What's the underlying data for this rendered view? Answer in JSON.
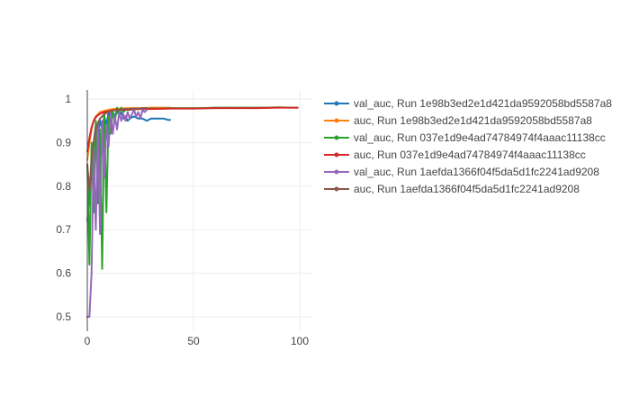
{
  "chart_data": {
    "type": "line",
    "title": "",
    "xlabel": "",
    "ylabel": "",
    "xlim": [
      -2,
      105
    ],
    "ylim": [
      0.47,
      1.02
    ],
    "x_ticks": [
      0,
      50,
      100
    ],
    "y_ticks": [
      0.5,
      0.6,
      0.7,
      0.8,
      0.9,
      1
    ],
    "x_tick_labels": [
      "0",
      "50",
      "100"
    ],
    "y_tick_labels": [
      "0.5",
      "0.6",
      "0.7",
      "0.8",
      "0.9",
      "1"
    ],
    "grid": true,
    "legend_position": "right",
    "series": [
      {
        "name": "val_auc, Run 1e98b3ed2e1d421da9592058bd5587a8",
        "color": "#1f77b4",
        "x": [
          0,
          1,
          2,
          3,
          4,
          5,
          6,
          7,
          8,
          9,
          10,
          11,
          12,
          13,
          14,
          15,
          16,
          17,
          18,
          19,
          20,
          22,
          24,
          26,
          28,
          30,
          32,
          34,
          36,
          38,
          39
        ],
        "y": [
          0.72,
          0.78,
          0.84,
          0.9,
          0.94,
          0.92,
          0.95,
          0.93,
          0.96,
          0.94,
          0.97,
          0.95,
          0.97,
          0.96,
          0.975,
          0.96,
          0.97,
          0.955,
          0.96,
          0.95,
          0.955,
          0.96,
          0.955,
          0.955,
          0.95,
          0.955,
          0.955,
          0.955,
          0.955,
          0.952,
          0.952
        ]
      },
      {
        "name": "auc, Run 1e98b3ed2e1d421da9592058bd5587a8",
        "color": "#ff7f0e",
        "x": [
          0,
          1,
          2,
          3,
          4,
          5,
          6,
          8,
          10,
          12,
          15,
          20,
          25,
          30,
          35,
          39
        ],
        "y": [
          0.86,
          0.9,
          0.93,
          0.95,
          0.96,
          0.965,
          0.97,
          0.973,
          0.975,
          0.977,
          0.978,
          0.979,
          0.979,
          0.98,
          0.98,
          0.98
        ]
      },
      {
        "name": "val_auc, Run 037e1d9e4ad74784974f4aaac11138cc",
        "color": "#2ca02c",
        "x": [
          0,
          1,
          2,
          3,
          4,
          5,
          6,
          7,
          8,
          9,
          10,
          11,
          12,
          13,
          14,
          15,
          16,
          17,
          18,
          20,
          25,
          30,
          35,
          40,
          45,
          50,
          55,
          60,
          65,
          70,
          75,
          80,
          85,
          90,
          95,
          99
        ],
        "y": [
          0.85,
          0.62,
          0.9,
          0.74,
          0.95,
          0.76,
          0.93,
          0.61,
          0.97,
          0.74,
          0.96,
          0.92,
          0.97,
          0.95,
          0.98,
          0.97,
          0.98,
          0.97,
          0.975,
          0.975,
          0.978,
          0.978,
          0.978,
          0.979,
          0.979,
          0.979,
          0.979,
          0.98,
          0.98,
          0.98,
          0.98,
          0.98,
          0.98,
          0.981,
          0.98,
          0.98
        ]
      },
      {
        "name": "auc, Run 037e1d9e4ad74784974f4aaac11138cc",
        "color": "#d62728",
        "x": [
          0,
          1,
          2,
          3,
          4,
          5,
          6,
          7,
          8,
          10,
          12,
          15,
          20,
          25,
          30,
          40,
          50,
          60,
          70,
          80,
          90,
          99
        ],
        "y": [
          0.88,
          0.91,
          0.935,
          0.95,
          0.958,
          0.963,
          0.966,
          0.968,
          0.97,
          0.972,
          0.974,
          0.975,
          0.976,
          0.977,
          0.977,
          0.978,
          0.978,
          0.979,
          0.979,
          0.979,
          0.98,
          0.98
        ]
      },
      {
        "name": "val_auc, Run 1aefda1366f04f5da5d1fc2241ad9208",
        "color": "#9467bd",
        "x": [
          0,
          1,
          2,
          3,
          4,
          5,
          6,
          7,
          8,
          9,
          10,
          11,
          12,
          13,
          14,
          15,
          16,
          17,
          18,
          19,
          20,
          21,
          22,
          23,
          24,
          25,
          26,
          27,
          28
        ],
        "y": [
          0.5,
          0.5,
          0.6,
          0.88,
          0.7,
          0.94,
          0.69,
          0.95,
          0.82,
          0.94,
          0.89,
          0.97,
          0.92,
          0.96,
          0.93,
          0.97,
          0.95,
          0.965,
          0.95,
          0.97,
          0.955,
          0.965,
          0.975,
          0.96,
          0.97,
          0.955,
          0.975,
          0.97,
          0.975
        ]
      },
      {
        "name": "auc, Run 1aefda1366f04f5da5d1fc2241ad9208",
        "color": "#8c564b",
        "x": [
          0,
          1,
          2,
          3,
          4,
          5,
          6,
          7,
          8,
          9,
          10,
          12,
          14,
          16,
          18,
          20,
          22,
          24,
          26,
          28
        ],
        "y": [
          0.85,
          0.79,
          0.86,
          0.9,
          0.93,
          0.945,
          0.955,
          0.96,
          0.965,
          0.968,
          0.97,
          0.973,
          0.975,
          0.976,
          0.977,
          0.977,
          0.978,
          0.978,
          0.979,
          0.979
        ]
      }
    ]
  }
}
